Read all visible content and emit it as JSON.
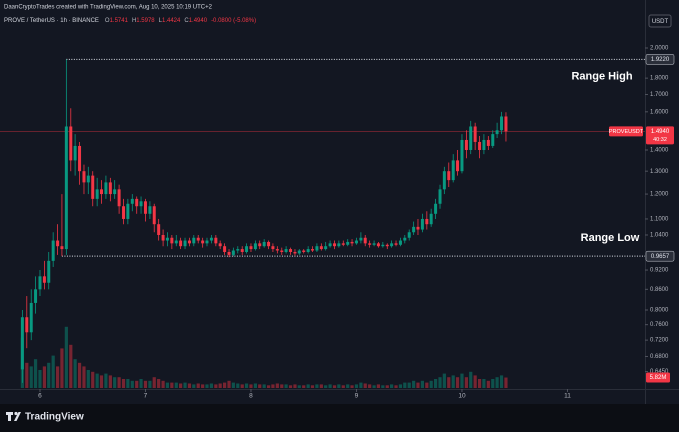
{
  "header": {
    "attribution": "DaanCryptoTrades created with TradingView.com, Aug 10, 2025 10:19 UTC+2",
    "symbol": "PROVE / TetherUS · 1h · BINANCE",
    "legend_labels": [
      "O",
      "H",
      "L",
      "C"
    ],
    "change": "-0.0800 (-5.08%)",
    "currency": "USDT",
    "brand": "TradingView"
  },
  "chart_data": {
    "type": "candlestick",
    "x": [
      5.833,
      5.875,
      5.917,
      5.958,
      6.0,
      6.042,
      6.083,
      6.125,
      6.167,
      6.208,
      6.25,
      6.292,
      6.333,
      6.375,
      6.417,
      6.458,
      6.5,
      6.542,
      6.583,
      6.625,
      6.667,
      6.708,
      6.75,
      6.792,
      6.833,
      6.875,
      6.917,
      6.958,
      7.0,
      7.042,
      7.083,
      7.125,
      7.167,
      7.208,
      7.25,
      7.292,
      7.333,
      7.375,
      7.417,
      7.458,
      7.5,
      7.542,
      7.583,
      7.625,
      7.667,
      7.708,
      7.75,
      7.792,
      7.833,
      7.875,
      7.917,
      7.958,
      8.0,
      8.042,
      8.083,
      8.125,
      8.167,
      8.208,
      8.25,
      8.292,
      8.333,
      8.375,
      8.417,
      8.458,
      8.5,
      8.542,
      8.583,
      8.625,
      8.667,
      8.708,
      8.75,
      8.792,
      8.833,
      8.875,
      8.917,
      8.958,
      9.0,
      9.042,
      9.083,
      9.125,
      9.167,
      9.208,
      9.25,
      9.292,
      9.333,
      9.375,
      9.417,
      9.458,
      9.5,
      9.542,
      9.583,
      9.625,
      9.667,
      9.708,
      9.75,
      9.792,
      9.833,
      9.875,
      9.917,
      9.958,
      10.0,
      10.042,
      10.083,
      10.125,
      10.167,
      10.208,
      10.25,
      10.292,
      10.333,
      10.375,
      10.417
    ],
    "series": [
      {
        "name": "PROVEUSDT",
        "up_color": "#089981",
        "down_color": "#f23645",
        "open": [
          0.65,
          0.78,
          0.74,
          0.82,
          0.86,
          0.9,
          0.88,
          0.95,
          1.02,
          1.0,
          0.99,
          1.52,
          1.35,
          1.42,
          1.3,
          1.25,
          1.28,
          1.18,
          1.22,
          1.2,
          1.25,
          1.2,
          1.22,
          1.15,
          1.1,
          1.16,
          1.18,
          1.15,
          1.17,
          1.12,
          1.15,
          1.08,
          1.04,
          1.02,
          1.03,
          1.01,
          1.02,
          1.0,
          1.02,
          1.01,
          1.03,
          1.02,
          1.01,
          1.02,
          1.03,
          1.01,
          1.0,
          0.98,
          0.97,
          0.985,
          0.99,
          0.98,
          1.0,
          0.99,
          1.01,
          1.0,
          1.015,
          1.0,
          0.99,
          0.985,
          0.98,
          0.99,
          0.98,
          0.975,
          0.985,
          0.98,
          0.99,
          0.985,
          1.0,
          0.99,
          1.0,
          1.01,
          1.0,
          1.01,
          1.005,
          1.015,
          1.01,
          1.02,
          1.03,
          1.01,
          1.005,
          1.01,
          1.0,
          1.005,
          1.0,
          1.01,
          1.005,
          1.02,
          1.03,
          1.05,
          1.07,
          1.06,
          1.1,
          1.08,
          1.12,
          1.16,
          1.22,
          1.3,
          1.26,
          1.35,
          1.3,
          1.45,
          1.4,
          1.52,
          1.44,
          1.4,
          1.45,
          1.42,
          1.48,
          1.5,
          1.5741
        ],
        "high": [
          0.8,
          0.84,
          0.86,
          0.9,
          0.92,
          0.95,
          0.98,
          1.05,
          1.08,
          1.2,
          1.922,
          1.62,
          1.48,
          1.44,
          1.33,
          1.32,
          1.3,
          1.27,
          1.26,
          1.28,
          1.27,
          1.26,
          1.24,
          1.18,
          1.18,
          1.2,
          1.19,
          1.19,
          1.18,
          1.17,
          1.16,
          1.1,
          1.06,
          1.05,
          1.04,
          1.04,
          1.03,
          1.03,
          1.03,
          1.04,
          1.04,
          1.03,
          1.03,
          1.04,
          1.04,
          1.02,
          1.01,
          0.99,
          0.995,
          1.0,
          1.0,
          1.01,
          1.01,
          1.02,
          1.02,
          1.025,
          1.02,
          1.01,
          1.0,
          0.995,
          1.0,
          0.995,
          0.99,
          0.99,
          0.99,
          1.0,
          1.0,
          1.01,
          1.01,
          1.015,
          1.02,
          1.02,
          1.02,
          1.02,
          1.025,
          1.025,
          1.03,
          1.05,
          1.04,
          1.02,
          1.02,
          1.015,
          1.015,
          1.01,
          1.02,
          1.02,
          1.03,
          1.04,
          1.06,
          1.09,
          1.1,
          1.12,
          1.13,
          1.14,
          1.18,
          1.24,
          1.32,
          1.34,
          1.38,
          1.4,
          1.48,
          1.5,
          1.55,
          1.54,
          1.47,
          1.48,
          1.47,
          1.5,
          1.54,
          1.6,
          1.5978
        ],
        "low": [
          0.62,
          0.7,
          0.72,
          0.79,
          0.84,
          0.86,
          0.86,
          0.93,
          0.97,
          0.9657,
          0.97,
          1.3,
          1.28,
          1.24,
          1.2,
          1.2,
          1.15,
          1.15,
          1.16,
          1.18,
          1.17,
          1.18,
          1.12,
          1.08,
          1.08,
          1.13,
          1.12,
          1.12,
          1.09,
          1.1,
          1.05,
          1.02,
          1.0,
          1.0,
          0.99,
          1.0,
          0.99,
          0.99,
          1.0,
          1.0,
          1.01,
          0.995,
          1.0,
          1.01,
          1.0,
          0.99,
          0.97,
          0.962,
          0.965,
          0.975,
          0.97,
          0.975,
          0.98,
          0.985,
          0.99,
          0.995,
          0.99,
          0.98,
          0.975,
          0.97,
          0.975,
          0.97,
          0.967,
          0.97,
          0.975,
          0.975,
          0.98,
          0.98,
          0.985,
          0.985,
          0.995,
          0.99,
          0.995,
          1.0,
          1.0,
          1.0,
          1.005,
          1.01,
          1.0,
          0.995,
          1.0,
          0.995,
          0.995,
          0.99,
          0.995,
          1.0,
          1.0,
          1.01,
          1.02,
          1.04,
          1.04,
          1.05,
          1.06,
          1.07,
          1.1,
          1.14,
          1.2,
          1.23,
          1.25,
          1.28,
          1.29,
          1.36,
          1.38,
          1.4,
          1.36,
          1.38,
          1.4,
          1.41,
          1.46,
          1.48,
          1.4424
        ],
        "close": [
          0.78,
          0.74,
          0.82,
          0.86,
          0.9,
          0.88,
          0.95,
          1.02,
          1.0,
          0.99,
          1.52,
          1.35,
          1.42,
          1.3,
          1.25,
          1.28,
          1.18,
          1.22,
          1.2,
          1.25,
          1.2,
          1.22,
          1.15,
          1.1,
          1.16,
          1.18,
          1.15,
          1.17,
          1.12,
          1.15,
          1.08,
          1.04,
          1.02,
          1.03,
          1.01,
          1.02,
          1.0,
          1.02,
          1.01,
          1.03,
          1.02,
          1.01,
          1.02,
          1.03,
          1.01,
          1.0,
          0.98,
          0.97,
          0.985,
          0.99,
          0.98,
          1.0,
          0.99,
          1.01,
          1.0,
          1.015,
          1.0,
          0.99,
          0.985,
          0.98,
          0.99,
          0.98,
          0.975,
          0.985,
          0.98,
          0.99,
          0.985,
          1.0,
          0.99,
          1.0,
          1.01,
          1.0,
          1.01,
          1.005,
          1.015,
          1.01,
          1.02,
          1.03,
          1.01,
          1.005,
          1.01,
          1.0,
          1.005,
          1.0,
          1.01,
          1.005,
          1.02,
          1.03,
          1.05,
          1.07,
          1.06,
          1.1,
          1.08,
          1.12,
          1.16,
          1.22,
          1.3,
          1.26,
          1.35,
          1.3,
          1.45,
          1.4,
          1.52,
          1.44,
          1.4,
          1.45,
          1.42,
          1.48,
          1.5,
          1.5741,
          1.494
        ]
      }
    ],
    "volume": {
      "axis": "y2",
      "values": [
        28000000.0,
        14000000.0,
        12000000.0,
        16000000.0,
        10000000.0,
        12000000.0,
        14000000.0,
        18000000.0,
        12000000.0,
        22000000.0,
        34000000.0,
        24000000.0,
        16000000.0,
        14000000.0,
        12000000.0,
        10000000.0,
        9000000.0,
        8000000.0,
        7000000.0,
        8000000.0,
        7000000.0,
        6000000.0,
        6000000.0,
        5000000.0,
        5000000.0,
        4000000.0,
        4000000.0,
        5000000.0,
        4000000.0,
        4000000.0,
        6000000.0,
        5000000.0,
        4000000.0,
        3000000.0,
        3000000.0,
        3000000.0,
        2500000.0,
        3000000.0,
        2500000.0,
        2000000.0,
        2500000.0,
        2000000.0,
        2000000.0,
        2500000.0,
        2000000.0,
        2500000.0,
        3000000.0,
        4000000.0,
        3000000.0,
        2500000.0,
        2000000.0,
        2500000.0,
        2000000.0,
        2500000.0,
        2000000.0,
        2000000.0,
        1500000.0,
        2000000.0,
        2500000.0,
        2000000.0,
        2000000.0,
        1500000.0,
        2000000.0,
        1500000.0,
        1500000.0,
        2000000.0,
        1500000.0,
        2000000.0,
        2000000.0,
        1500000.0,
        2000000.0,
        1500000.0,
        2000000.0,
        1500000.0,
        2000000.0,
        1500000.0,
        2000000.0,
        3000000.0,
        2500000.0,
        2000000.0,
        1500000.0,
        2000000.0,
        1500000.0,
        1500000.0,
        2000000.0,
        1500000.0,
        2000000.0,
        3000000.0,
        3000000.0,
        4000000.0,
        3000000.0,
        4000000.0,
        3000000.0,
        4000000.0,
        5000000.0,
        6000000.0,
        8000000.0,
        6000000.0,
        7000000.0,
        6000000.0,
        8000000.0,
        6000000.0,
        9000000.0,
        7000000.0,
        5000000.0,
        5000000.0,
        4000000.0,
        5000000.0,
        6000000.0,
        7000000.0,
        5820000.0
      ],
      "last_label": "5.82M"
    },
    "last_price": {
      "value": 1.494,
      "label": "1.4940",
      "countdown": "40:32",
      "color": "#f23645"
    },
    "levels": [
      {
        "value": 1.922,
        "label": "1.9220",
        "x": 6.25,
        "annotation": "Range High"
      },
      {
        "value": 0.9657,
        "label": "0.9657",
        "x": 6.208,
        "annotation": "Range Low"
      }
    ],
    "log": true,
    "ylim": [
      0.609,
      2.145
    ],
    "yticks": [
      {
        "value": 2,
        "label": "2.0000"
      },
      {
        "value": 1.8,
        "label": "1.8000"
      },
      {
        "value": 1.7,
        "label": "1.7000"
      },
      {
        "value": 1.6,
        "label": "1.6000"
      },
      {
        "value": 1.4,
        "label": "1.4000"
      },
      {
        "value": 1.3,
        "label": "1.3000"
      },
      {
        "value": 1.2,
        "label": "1.2000"
      },
      {
        "value": 1.1,
        "label": "1.1000"
      },
      {
        "value": 1.04,
        "label": "1.0400"
      },
      {
        "value": 0.92,
        "label": "0.9200"
      },
      {
        "value": 0.86,
        "label": "0.8600"
      },
      {
        "value": 0.8,
        "label": "0.8000"
      },
      {
        "value": 0.76,
        "label": "0.7600"
      },
      {
        "value": 0.72,
        "label": "0.7200"
      },
      {
        "value": 0.68,
        "label": "0.6800"
      },
      {
        "value": 0.645,
        "label": "0.6450"
      }
    ],
    "y2lim": [
      0,
      60000000
    ],
    "xlim": [
      5.621,
      11.735
    ],
    "xticks": [
      6,
      7,
      8,
      9,
      10,
      11
    ]
  }
}
